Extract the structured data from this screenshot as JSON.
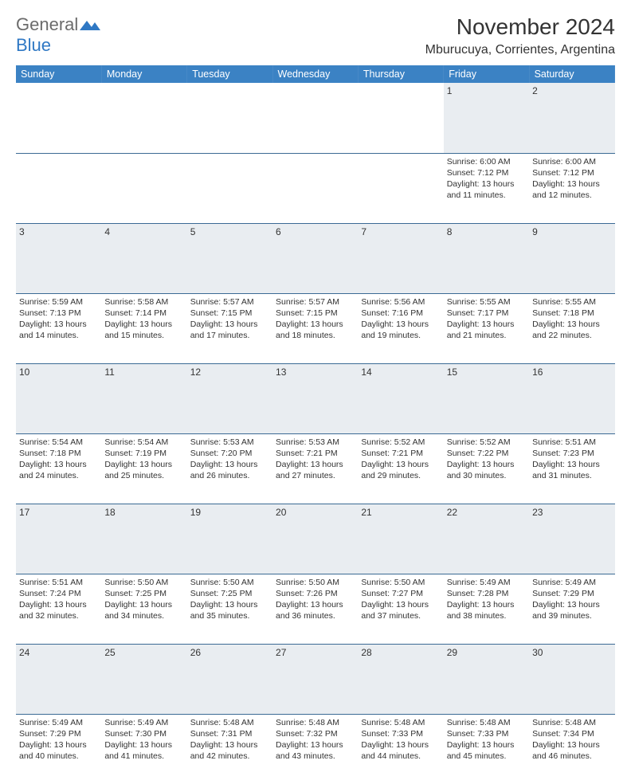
{
  "logo": {
    "text_gray": "General",
    "text_blue": "Blue"
  },
  "title": "November 2024",
  "location": "Mburucuya, Corrientes, Argentina",
  "theme": {
    "header_bg": "#3b82c4",
    "header_fg": "#ffffff",
    "daynum_bg": "#e9edf1",
    "rule_color": "#3b6a94",
    "body_bg": "#ffffff",
    "text_color": "#333333",
    "logo_gray": "#6b6b6b",
    "logo_blue": "#2f78c4"
  },
  "weekdays": [
    "Sunday",
    "Monday",
    "Tuesday",
    "Wednesday",
    "Thursday",
    "Friday",
    "Saturday"
  ],
  "weeks": [
    {
      "nums": [
        "",
        "",
        "",
        "",
        "",
        "1",
        "2"
      ],
      "cells": [
        null,
        null,
        null,
        null,
        null,
        {
          "sunrise": "6:00 AM",
          "sunset": "7:12 PM",
          "daylight": "13 hours and 11 minutes."
        },
        {
          "sunrise": "6:00 AM",
          "sunset": "7:12 PM",
          "daylight": "13 hours and 12 minutes."
        }
      ]
    },
    {
      "nums": [
        "3",
        "4",
        "5",
        "6",
        "7",
        "8",
        "9"
      ],
      "cells": [
        {
          "sunrise": "5:59 AM",
          "sunset": "7:13 PM",
          "daylight": "13 hours and 14 minutes."
        },
        {
          "sunrise": "5:58 AM",
          "sunset": "7:14 PM",
          "daylight": "13 hours and 15 minutes."
        },
        {
          "sunrise": "5:57 AM",
          "sunset": "7:15 PM",
          "daylight": "13 hours and 17 minutes."
        },
        {
          "sunrise": "5:57 AM",
          "sunset": "7:15 PM",
          "daylight": "13 hours and 18 minutes."
        },
        {
          "sunrise": "5:56 AM",
          "sunset": "7:16 PM",
          "daylight": "13 hours and 19 minutes."
        },
        {
          "sunrise": "5:55 AM",
          "sunset": "7:17 PM",
          "daylight": "13 hours and 21 minutes."
        },
        {
          "sunrise": "5:55 AM",
          "sunset": "7:18 PM",
          "daylight": "13 hours and 22 minutes."
        }
      ]
    },
    {
      "nums": [
        "10",
        "11",
        "12",
        "13",
        "14",
        "15",
        "16"
      ],
      "cells": [
        {
          "sunrise": "5:54 AM",
          "sunset": "7:18 PM",
          "daylight": "13 hours and 24 minutes."
        },
        {
          "sunrise": "5:54 AM",
          "sunset": "7:19 PM",
          "daylight": "13 hours and 25 minutes."
        },
        {
          "sunrise": "5:53 AM",
          "sunset": "7:20 PM",
          "daylight": "13 hours and 26 minutes."
        },
        {
          "sunrise": "5:53 AM",
          "sunset": "7:21 PM",
          "daylight": "13 hours and 27 minutes."
        },
        {
          "sunrise": "5:52 AM",
          "sunset": "7:21 PM",
          "daylight": "13 hours and 29 minutes."
        },
        {
          "sunrise": "5:52 AM",
          "sunset": "7:22 PM",
          "daylight": "13 hours and 30 minutes."
        },
        {
          "sunrise": "5:51 AM",
          "sunset": "7:23 PM",
          "daylight": "13 hours and 31 minutes."
        }
      ]
    },
    {
      "nums": [
        "17",
        "18",
        "19",
        "20",
        "21",
        "22",
        "23"
      ],
      "cells": [
        {
          "sunrise": "5:51 AM",
          "sunset": "7:24 PM",
          "daylight": "13 hours and 32 minutes."
        },
        {
          "sunrise": "5:50 AM",
          "sunset": "7:25 PM",
          "daylight": "13 hours and 34 minutes."
        },
        {
          "sunrise": "5:50 AM",
          "sunset": "7:25 PM",
          "daylight": "13 hours and 35 minutes."
        },
        {
          "sunrise": "5:50 AM",
          "sunset": "7:26 PM",
          "daylight": "13 hours and 36 minutes."
        },
        {
          "sunrise": "5:50 AM",
          "sunset": "7:27 PM",
          "daylight": "13 hours and 37 minutes."
        },
        {
          "sunrise": "5:49 AM",
          "sunset": "7:28 PM",
          "daylight": "13 hours and 38 minutes."
        },
        {
          "sunrise": "5:49 AM",
          "sunset": "7:29 PM",
          "daylight": "13 hours and 39 minutes."
        }
      ]
    },
    {
      "nums": [
        "24",
        "25",
        "26",
        "27",
        "28",
        "29",
        "30"
      ],
      "cells": [
        {
          "sunrise": "5:49 AM",
          "sunset": "7:29 PM",
          "daylight": "13 hours and 40 minutes."
        },
        {
          "sunrise": "5:49 AM",
          "sunset": "7:30 PM",
          "daylight": "13 hours and 41 minutes."
        },
        {
          "sunrise": "5:48 AM",
          "sunset": "7:31 PM",
          "daylight": "13 hours and 42 minutes."
        },
        {
          "sunrise": "5:48 AM",
          "sunset": "7:32 PM",
          "daylight": "13 hours and 43 minutes."
        },
        {
          "sunrise": "5:48 AM",
          "sunset": "7:33 PM",
          "daylight": "13 hours and 44 minutes."
        },
        {
          "sunrise": "5:48 AM",
          "sunset": "7:33 PM",
          "daylight": "13 hours and 45 minutes."
        },
        {
          "sunrise": "5:48 AM",
          "sunset": "7:34 PM",
          "daylight": "13 hours and 46 minutes."
        }
      ]
    }
  ],
  "labels": {
    "sunrise": "Sunrise:",
    "sunset": "Sunset:",
    "daylight": "Daylight:"
  }
}
